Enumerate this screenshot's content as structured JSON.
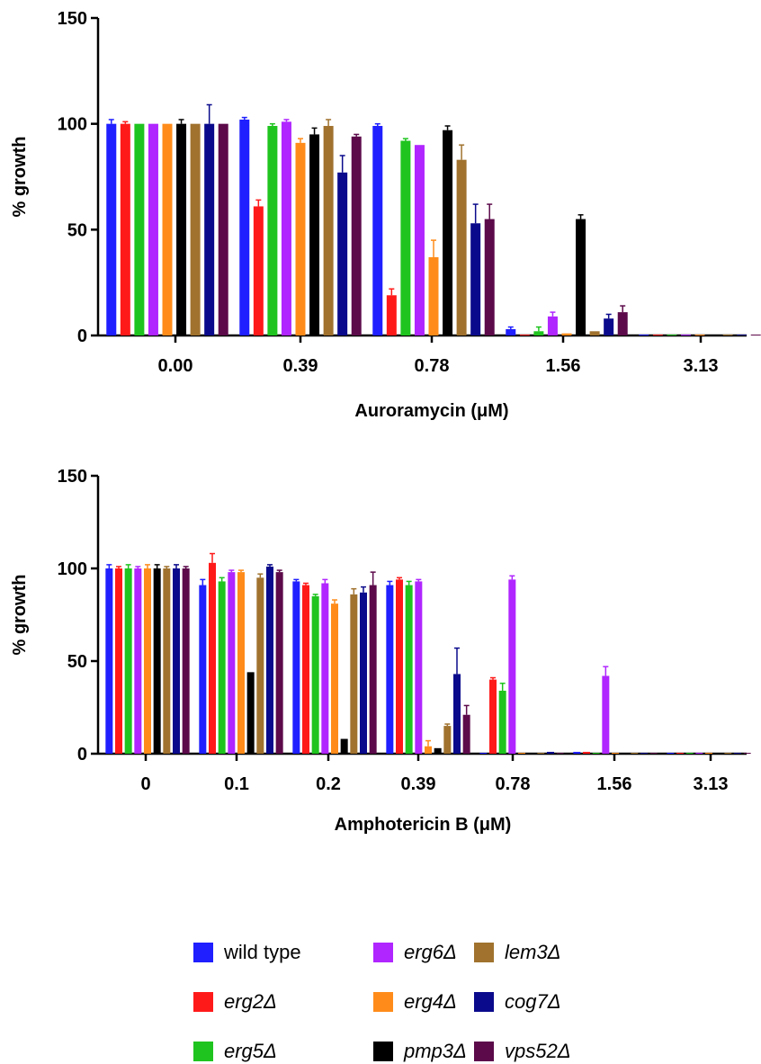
{
  "colors": {
    "wild_type": "#1f1fff",
    "erg2": "#ff1a1a",
    "erg5": "#1fc41f",
    "erg6": "#b026ff",
    "erg4": "#ff8c1a",
    "pmp3": "#000000",
    "lem3": "#a0722e",
    "cog7": "#0a0a8c",
    "vps52": "#5c0a4a"
  },
  "legend": {
    "items": [
      {
        "key": "wild_type",
        "label": "wild type",
        "italic": false
      },
      {
        "key": "erg6",
        "label": "erg6Δ",
        "italic": true
      },
      {
        "key": "lem3",
        "label": "lem3Δ",
        "italic": true
      },
      {
        "key": "erg2",
        "label": "erg2Δ",
        "italic": true
      },
      {
        "key": "erg4",
        "label": "erg4Δ",
        "italic": true
      },
      {
        "key": "cog7",
        "label": "cog7Δ",
        "italic": true
      },
      {
        "key": "erg5",
        "label": "erg5Δ",
        "italic": true
      },
      {
        "key": "pmp3",
        "label": "pmp3Δ",
        "italic": true
      },
      {
        "key": "vps52",
        "label": "vps52Δ",
        "italic": true
      }
    ]
  },
  "chart_data": [
    {
      "type": "bar",
      "xlabel": "Auroramycin (μM)",
      "ylabel": "% growth",
      "ylim": [
        0,
        150
      ],
      "yticks": [
        0,
        50,
        100,
        150
      ],
      "categories": [
        "0.00",
        "0.39",
        "0.78",
        "1.56",
        "3.13"
      ],
      "series": [
        {
          "key": "wild_type",
          "values": [
            100,
            102,
            99,
            3,
            0
          ],
          "errors": [
            2,
            1,
            1,
            1,
            0
          ]
        },
        {
          "key": "erg2",
          "values": [
            100,
            61,
            19,
            0,
            0
          ],
          "errors": [
            1,
            3,
            3,
            0,
            0
          ]
        },
        {
          "key": "erg5",
          "values": [
            100,
            99,
            92,
            2,
            0
          ],
          "errors": [
            0,
            1,
            1,
            2,
            0
          ]
        },
        {
          "key": "erg6",
          "values": [
            100,
            101,
            90,
            9,
            0
          ],
          "errors": [
            0,
            1,
            0,
            2,
            0
          ]
        },
        {
          "key": "erg4",
          "values": [
            100,
            91,
            37,
            1,
            0
          ],
          "errors": [
            0,
            2,
            8,
            0,
            0
          ]
        },
        {
          "key": "pmp3",
          "values": [
            100,
            95,
            97,
            55,
            0
          ],
          "errors": [
            2,
            3,
            2,
            2,
            0
          ]
        },
        {
          "key": "lem3",
          "values": [
            100,
            99,
            83,
            2,
            0
          ],
          "errors": [
            0,
            3,
            7,
            0,
            0
          ]
        },
        {
          "key": "cog7",
          "values": [
            100,
            77,
            53,
            8,
            0
          ],
          "errors": [
            9,
            8,
            9,
            2,
            0
          ]
        },
        {
          "key": "vps52",
          "values": [
            100,
            94,
            55,
            11,
            0
          ],
          "errors": [
            0,
            1,
            7,
            3,
            0
          ]
        }
      ]
    },
    {
      "type": "bar",
      "xlabel": "Amphotericin B (μM)",
      "ylabel": "% growth",
      "ylim": [
        0,
        150
      ],
      "yticks": [
        0,
        50,
        100,
        150
      ],
      "categories": [
        "0",
        "0.1",
        "0.2",
        "0.39",
        "0.78",
        "1.56",
        "3.13"
      ],
      "series": [
        {
          "key": "wild_type",
          "values": [
            100,
            91,
            93,
            91,
            0,
            1,
            0
          ],
          "errors": [
            2,
            3,
            1,
            2,
            0,
            0,
            0
          ]
        },
        {
          "key": "erg2",
          "values": [
            100,
            103,
            91,
            94,
            40,
            1,
            0
          ],
          "errors": [
            1,
            5,
            1,
            1,
            1,
            0,
            0
          ]
        },
        {
          "key": "erg5",
          "values": [
            100,
            93,
            85,
            91,
            34,
            0,
            0
          ],
          "errors": [
            2,
            2,
            1,
            2,
            4,
            0,
            0
          ]
        },
        {
          "key": "erg6",
          "values": [
            100,
            98,
            92,
            93,
            94,
            42,
            0
          ],
          "errors": [
            1,
            1,
            2,
            1,
            2,
            5,
            0
          ]
        },
        {
          "key": "erg4",
          "values": [
            100,
            98,
            81,
            4,
            0,
            0,
            0
          ],
          "errors": [
            2,
            1,
            2,
            3,
            0,
            0,
            0
          ]
        },
        {
          "key": "pmp3",
          "values": [
            100,
            44,
            8,
            3,
            0,
            0,
            0
          ],
          "errors": [
            2,
            0,
            0,
            0,
            0,
            0,
            0
          ]
        },
        {
          "key": "lem3",
          "values": [
            100,
            95,
            86,
            15,
            0,
            0,
            0
          ],
          "errors": [
            1,
            2,
            3,
            1,
            0,
            0,
            0
          ]
        },
        {
          "key": "cog7",
          "values": [
            100,
            101,
            87,
            43,
            1,
            0,
            0
          ],
          "errors": [
            2,
            1,
            3,
            14,
            0,
            0,
            0
          ]
        },
        {
          "key": "vps52",
          "values": [
            100,
            98,
            91,
            21,
            0,
            0,
            0
          ],
          "errors": [
            1,
            1,
            7,
            5,
            0,
            0,
            0
          ]
        }
      ]
    }
  ]
}
